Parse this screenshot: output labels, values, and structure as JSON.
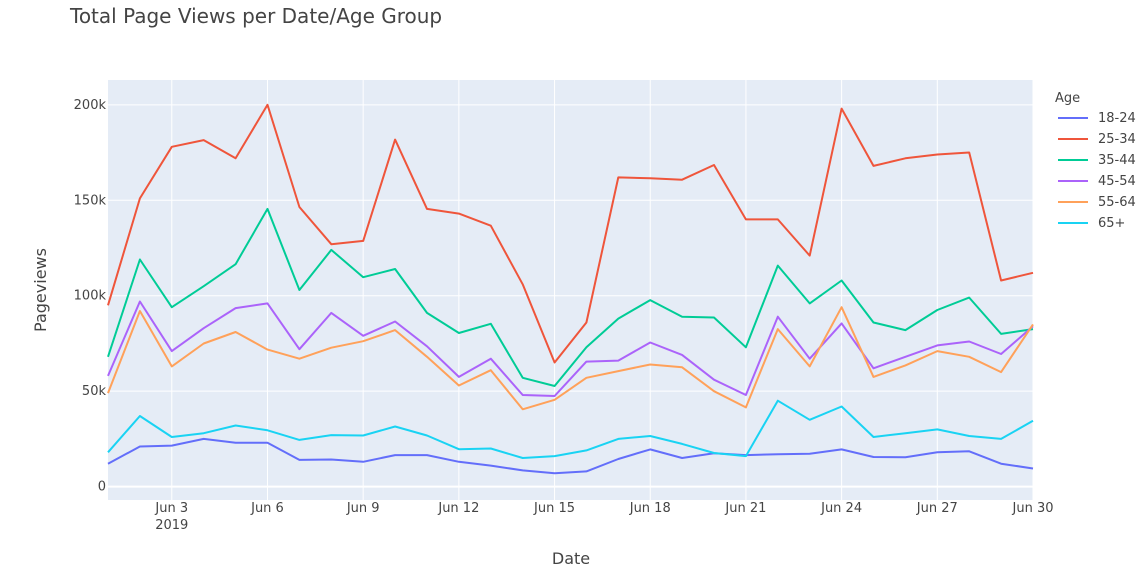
{
  "chart_data": {
    "type": "line",
    "title": "Total Page Views per Date/Age Group",
    "xlabel": "Date",
    "ylabel": "Pageviews",
    "x": [
      "2019-06-01",
      "2019-06-02",
      "2019-06-03",
      "2019-06-04",
      "2019-06-05",
      "2019-06-06",
      "2019-06-07",
      "2019-06-08",
      "2019-06-09",
      "2019-06-10",
      "2019-06-11",
      "2019-06-12",
      "2019-06-13",
      "2019-06-14",
      "2019-06-15",
      "2019-06-16",
      "2019-06-17",
      "2019-06-18",
      "2019-06-19",
      "2019-06-20",
      "2019-06-21",
      "2019-06-22",
      "2019-06-23",
      "2019-06-24",
      "2019-06-25",
      "2019-06-26",
      "2019-06-27",
      "2019-06-28",
      "2019-06-29",
      "2019-06-30"
    ],
    "x_ticks": [
      {
        "date": "2019-06-03",
        "label": "Jun 3",
        "sublabel": "2019"
      },
      {
        "date": "2019-06-06",
        "label": "Jun 6"
      },
      {
        "date": "2019-06-09",
        "label": "Jun 9"
      },
      {
        "date": "2019-06-12",
        "label": "Jun 12"
      },
      {
        "date": "2019-06-15",
        "label": "Jun 15"
      },
      {
        "date": "2019-06-18",
        "label": "Jun 18"
      },
      {
        "date": "2019-06-21",
        "label": "Jun 21"
      },
      {
        "date": "2019-06-24",
        "label": "Jun 24"
      },
      {
        "date": "2019-06-27",
        "label": "Jun 27"
      },
      {
        "date": "2019-06-30",
        "label": "Jun 30"
      }
    ],
    "y_ticks": [
      {
        "value": 0,
        "label": "0"
      },
      {
        "value": 50000,
        "label": "50k"
      },
      {
        "value": 100000,
        "label": "100k"
      },
      {
        "value": 150000,
        "label": "150k"
      },
      {
        "value": 200000,
        "label": "200k"
      }
    ],
    "ylim": [
      -7000,
      213000
    ],
    "grid": true,
    "legend_title": "Age",
    "legend_position": "right",
    "series": [
      {
        "name": "18-24",
        "color": "#636efa",
        "values": [
          12000,
          21000,
          21500,
          25000,
          23000,
          23000,
          14000,
          14200,
          13000,
          16500,
          16500,
          13000,
          11000,
          8500,
          7000,
          8000,
          14500,
          19500,
          15000,
          17500,
          16500,
          17000,
          17200,
          19500,
          15500,
          15400,
          18000,
          18500,
          12000,
          9500
        ]
      },
      {
        "name": "25-34",
        "color": "#ef553b",
        "values": [
          95000,
          151000,
          178000,
          181500,
          172000,
          200000,
          146500,
          127000,
          128700,
          181800,
          145500,
          143000,
          136700,
          106000,
          65000,
          86000,
          162000,
          161500,
          160800,
          168500,
          140000,
          140000,
          121000,
          198000,
          168000,
          172000,
          174000,
          175000,
          108000,
          112000
        ]
      },
      {
        "name": "35-44",
        "color": "#00cc96",
        "values": [
          68000,
          119000,
          94000,
          105000,
          116500,
          145500,
          103000,
          124000,
          109700,
          114000,
          91000,
          80500,
          85300,
          57000,
          52700,
          73000,
          88000,
          97700,
          89000,
          88600,
          73000,
          115800,
          96000,
          108000,
          86000,
          82000,
          92500,
          99000,
          80000,
          82500
        ]
      },
      {
        "name": "45-54",
        "color": "#ab63fa",
        "values": [
          58000,
          97000,
          71000,
          83000,
          93500,
          96000,
          72000,
          91000,
          79000,
          86500,
          73500,
          57500,
          67000,
          48000,
          47500,
          65500,
          66000,
          75500,
          69000,
          56000,
          48000,
          89000,
          67000,
          85500,
          62000,
          68000,
          74000,
          76000,
          69500,
          84000
        ]
      },
      {
        "name": "55-64",
        "color": "#ffa15a",
        "values": [
          49000,
          92000,
          63000,
          75000,
          81000,
          71800,
          67000,
          72800,
          76200,
          82000,
          68000,
          53000,
          61000,
          40500,
          45500,
          57000,
          60500,
          64000,
          62500,
          50000,
          41500,
          82500,
          63000,
          94000,
          57500,
          63500,
          71000,
          68000,
          60000,
          85000
        ]
      },
      {
        "name": "65+",
        "color": "#19d3f3",
        "values": [
          18000,
          37000,
          26000,
          28000,
          32000,
          29500,
          24500,
          27000,
          26800,
          31500,
          26800,
          19600,
          20000,
          15000,
          16000,
          19000,
          25000,
          26500,
          22400,
          17600,
          16000,
          45000,
          35000,
          42000,
          26000,
          28000,
          30000,
          26500,
          25000,
          34500
        ]
      }
    ]
  }
}
